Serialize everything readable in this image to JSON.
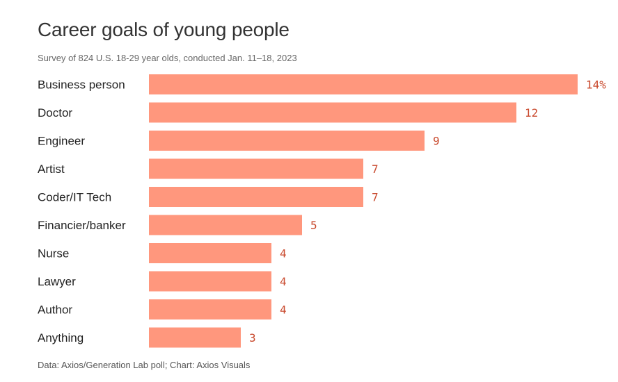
{
  "title": "Career goals of young people",
  "subtitle": "Survey of 824 U.S. 18-29 year olds, conducted Jan. 11–18, 2023",
  "footer": "Data: Axios/Generation Lab poll; Chart: Axios Visuals",
  "colors": {
    "bar": "#ff977d",
    "value_text": "#c94a2e",
    "label_text": "#222222"
  },
  "chart_data": {
    "type": "bar",
    "orientation": "horizontal",
    "title": "Career goals of young people",
    "subtitle": "Survey of 824 U.S. 18-29 year olds, conducted Jan. 11–18, 2023",
    "categories": [
      "Business person",
      "Doctor",
      "Engineer",
      "Artist",
      "Coder/IT Tech",
      "Financier/banker",
      "Nurse",
      "Lawyer",
      "Author",
      "Anything"
    ],
    "values": [
      14,
      12,
      9,
      7,
      7,
      5,
      4,
      4,
      4,
      3
    ],
    "value_labels": [
      "14%",
      "12",
      "9",
      "7",
      "7",
      "5",
      "4",
      "4",
      "4",
      "3"
    ],
    "xlim": [
      0,
      14
    ],
    "grid": false,
    "legend": "none"
  }
}
